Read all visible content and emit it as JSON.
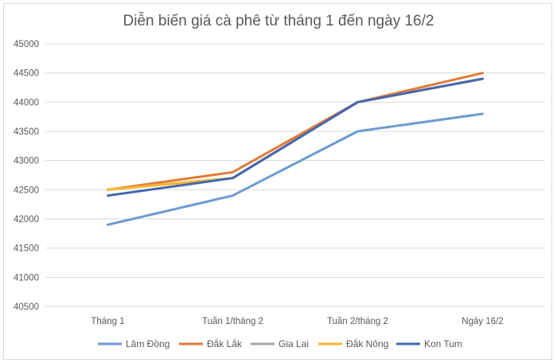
{
  "chart_data": {
    "type": "line",
    "title": "Diễn biến giá cà phê từ tháng 1 đến ngày 16/2",
    "xlabel": "",
    "ylabel": "",
    "categories": [
      "Tháng 1",
      "Tuần 1/tháng 2",
      "Tuần 2/tháng 2",
      "Ngày 16/2"
    ],
    "ylim": [
      40500,
      45000
    ],
    "yticks": [
      "40500",
      "41000",
      "41500",
      "42000",
      "42500",
      "43000",
      "43500",
      "44000",
      "44500",
      "45000"
    ],
    "grid": true,
    "legend_position": "bottom",
    "series": [
      {
        "name": "Lâm Đồng",
        "color": "#6b9bd1",
        "values": [
          41900,
          42400,
          43500,
          43800
        ]
      },
      {
        "name": "Đắk Lắk",
        "color": "#e07b39",
        "values": [
          42500,
          42800,
          44000,
          44500
        ]
      },
      {
        "name": "Gia Lai",
        "color": "#a5a5a5",
        "values": [
          42500,
          42700,
          44000,
          44400
        ]
      },
      {
        "name": "Đắk Nông",
        "color": "#f5b82e",
        "values": [
          42500,
          42700,
          44000,
          44400
        ]
      },
      {
        "name": "Kon Tum",
        "color": "#4367b0",
        "values": [
          42400,
          42700,
          44000,
          44400
        ]
      }
    ]
  }
}
